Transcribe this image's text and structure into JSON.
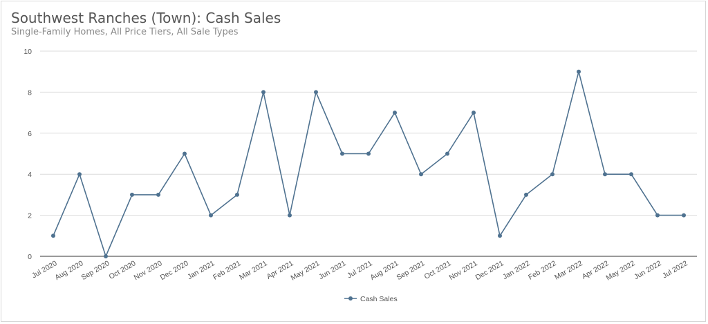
{
  "chart_data": {
    "type": "line",
    "title": "Southwest Ranches (Town): Cash Sales",
    "subtitle": "Single-Family Homes, All Price Tiers, All Sale Types",
    "xlabel": "",
    "ylabel": "",
    "ylim": [
      0,
      10
    ],
    "yticks": [
      "0",
      "2",
      "4",
      "6",
      "8",
      "10"
    ],
    "grid": true,
    "legend_position": "bottom-center",
    "color": "#4f7290",
    "categories": [
      "Jul 2020",
      "Aug 2020",
      "Sep 2020",
      "Oct 2020",
      "Nov 2020",
      "Dec 2020",
      "Jan 2021",
      "Feb 2021",
      "Mar 2021",
      "Apr 2021",
      "May 2021",
      "Jun 2021",
      "Jul 2021",
      "Aug 2021",
      "Sep 2021",
      "Oct 2021",
      "Nov 2021",
      "Dec 2021",
      "Jan 2022",
      "Feb 2022",
      "Mar 2022",
      "Apr 2022",
      "May 2022",
      "Jun 2022",
      "Jul 2022"
    ],
    "series": [
      {
        "name": "Cash Sales",
        "values": [
          1,
          4,
          0,
          3,
          3,
          5,
          2,
          3,
          8,
          2,
          8,
          5,
          5,
          7,
          4,
          5,
          7,
          1,
          3,
          4,
          9,
          4,
          4,
          2,
          2
        ]
      }
    ]
  }
}
